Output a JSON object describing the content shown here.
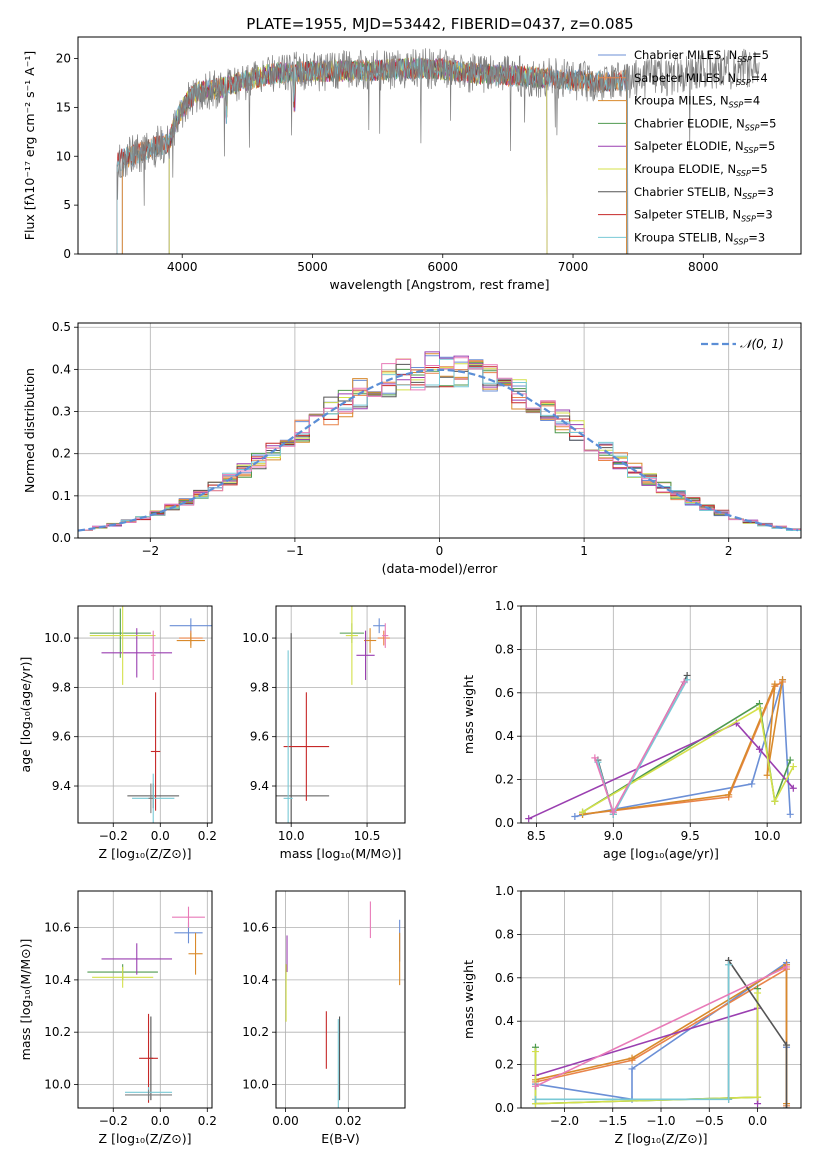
{
  "title": "PLATE=1955, MJD=53442, FIBERID=0437, z=0.085",
  "colors": {
    "Chabrier MILES": "#6b8fd6",
    "Salpeter MILES": "#e9844a",
    "Kroupa MILES": "#d98a2b",
    "Chabrier ELODIE": "#4f9a4f",
    "Salpeter ELODIE": "#9a3fb0",
    "Kroupa ELODIE": "#d4e04a",
    "Chabrier STELIB": "#555555",
    "Salpeter STELIB": "#c62828",
    "Kroupa STELIB": "#79c9d6",
    "pink": "#e87ab8",
    "gray": "#7f7f7f"
  },
  "chart_data": [
    {
      "id": "spectrum",
      "type": "line",
      "xlabel": "wavelength [Angstrom, rest frame]",
      "ylabel": "Flux [fλ10⁻¹⁷ erg cm⁻² s⁻¹ A⁻¹]",
      "xlim": [
        3200,
        8750
      ],
      "ylim": [
        0,
        22.2
      ],
      "xticks": [
        4000,
        5000,
        6000,
        7000,
        8000
      ],
      "yticks": [
        0,
        5,
        10,
        15,
        20
      ],
      "legend_position": "right",
      "legend": [
        {
          "pre": "Chabrier MILES, N",
          "sub": "SSP",
          "post": "=5"
        },
        {
          "pre": "Salpeter MILES, N",
          "sub": "SSP",
          "post": "=4"
        },
        {
          "pre": "Kroupa MILES, N",
          "sub": "SSP",
          "post": "=4"
        },
        {
          "pre": "Chabrier ELODIE, N",
          "sub": "SSP",
          "post": "=5"
        },
        {
          "pre": "Salpeter ELODIE, N",
          "sub": "SSP",
          "post": "=5"
        },
        {
          "pre": "Kroupa ELODIE, N",
          "sub": "SSP",
          "post": "=5"
        },
        {
          "pre": "Chabrier STELIB, N",
          "sub": "SSP",
          "post": "=3"
        },
        {
          "pre": "Salpeter STELIB, N",
          "sub": "SSP",
          "post": "=3"
        },
        {
          "pre": "Kroupa STELIB, N",
          "sub": "SSP",
          "post": "=3"
        }
      ],
      "continuum": [
        [
          3500,
          9.5
        ],
        [
          3700,
          10.5
        ],
        [
          3900,
          11.5
        ],
        [
          3980,
          14.5
        ],
        [
          4100,
          16.5
        ],
        [
          4300,
          17
        ],
        [
          4500,
          17.8
        ],
        [
          4700,
          18.5
        ],
        [
          5000,
          18.7
        ],
        [
          5200,
          18.7
        ],
        [
          5500,
          18.8
        ],
        [
          5800,
          19
        ],
        [
          6000,
          18.9
        ],
        [
          6300,
          18.4
        ],
        [
          6600,
          18.2
        ],
        [
          6800,
          18
        ],
        [
          7000,
          17.8
        ],
        [
          7200,
          17.6
        ],
        [
          7400,
          17.8
        ],
        [
          7700,
          18.2
        ],
        [
          8000,
          18.8
        ],
        [
          8400,
          19
        ]
      ]
    },
    {
      "id": "residuals",
      "type": "histogram",
      "xlabel": "(data-model)/error",
      "ylabel": "Normed distribution",
      "xlim": [
        -2.5,
        2.5
      ],
      "ylim": [
        0,
        0.51
      ],
      "xticks": [
        -2,
        -1,
        0,
        1,
        2
      ],
      "yticks": [
        0.0,
        0.1,
        0.2,
        0.3,
        0.4,
        0.5
      ],
      "reference": {
        "label": "𝒩(0, 1)",
        "mean": 0,
        "sigma": 1
      },
      "bin_width": 0.1,
      "grid": true
    },
    {
      "id": "age_vs_Z",
      "type": "errorbar",
      "xlabel": "Z [log₁₀(Z/Z⊙)]",
      "ylabel": "age  [log₁₀(age/yr)]",
      "xlim": [
        -0.35,
        0.22
      ],
      "ylim": [
        9.25,
        10.13
      ],
      "xticks": [
        -0.2,
        0.0,
        0.2
      ],
      "yticks": [
        9.4,
        9.6,
        9.8,
        10.0
      ],
      "points": [
        {
          "s": "Chabrier MILES",
          "x": 0.13,
          "y": 10.05,
          "xe": 0.09,
          "ye": 0.03
        },
        {
          "s": "Salpeter MILES",
          "x": 0.13,
          "y": 10.0,
          "xe": 0.05,
          "ye": 0.03
        },
        {
          "s": "Kroupa MILES",
          "x": 0.13,
          "y": 9.99,
          "xe": 0.06,
          "ye": 0.03
        },
        {
          "s": "Chabrier ELODIE",
          "x": -0.17,
          "y": 10.02,
          "xe": 0.13,
          "ye": 0.1
        },
        {
          "s": "Salpeter ELODIE",
          "x": -0.1,
          "y": 9.94,
          "xe": 0.15,
          "ye": 0.1
        },
        {
          "s": "Kroupa ELODIE",
          "x": -0.16,
          "y": 10.01,
          "xe": 0.14,
          "ye": 0.2
        },
        {
          "s": "Chabrier STELIB",
          "x": -0.03,
          "y": 9.36,
          "xe": 0.11,
          "ye": 0.05
        },
        {
          "s": "Salpeter STELIB",
          "x": -0.02,
          "y": 9.54,
          "xe": 0.02,
          "ye": 0.24
        },
        {
          "s": "Kroupa STELIB",
          "x": -0.03,
          "y": 9.35,
          "xe": 0.09,
          "ye": 0.1
        },
        {
          "s": "pink",
          "x": -0.03,
          "y": 9.93,
          "xe": 0.01,
          "ye": 0.1
        },
        {
          "s": "gray",
          "x": -0.04,
          "y": 9.35,
          "xe": 0.01,
          "ye": 0.06
        }
      ]
    },
    {
      "id": "age_vs_mass",
      "type": "errorbar",
      "xlabel": "mass [log₁₀(M/M⊙)]",
      "ylabel": "",
      "xlim": [
        9.9,
        10.75
      ],
      "ylim": [
        9.25,
        10.13
      ],
      "xticks": [
        10.0,
        10.5
      ],
      "yticks": [
        9.4,
        9.6,
        9.8,
        10.0
      ],
      "points": [
        {
          "s": "Chabrier MILES",
          "x": 10.58,
          "y": 10.05,
          "xe": 0.04,
          "ye": 0.03
        },
        {
          "s": "Salpeter MILES",
          "x": 10.61,
          "y": 10.0,
          "xe": 0.04,
          "ye": 0.03
        },
        {
          "s": "Kroupa MILES",
          "x": 10.52,
          "y": 9.99,
          "xe": 0.04,
          "ye": 0.05
        },
        {
          "s": "Chabrier ELODIE",
          "x": 10.4,
          "y": 10.02,
          "xe": 0.08,
          "ye": 0.04
        },
        {
          "s": "Salpeter ELODIE",
          "x": 10.49,
          "y": 9.93,
          "xe": 0.06,
          "ye": 0.1
        },
        {
          "s": "Kroupa ELODIE",
          "x": 10.4,
          "y": 10.01,
          "xe": 0.04,
          "ye": 0.2
        },
        {
          "s": "Chabrier STELIB",
          "x": 10.0,
          "y": 9.36,
          "xe": 0.25,
          "ye": 0.66
        },
        {
          "s": "Salpeter STELIB",
          "x": 10.1,
          "y": 9.56,
          "xe": 0.15,
          "ye": 0.22
        },
        {
          "s": "Kroupa STELIB",
          "x": 9.98,
          "y": 9.35,
          "xe": 0.03,
          "ye": 0.6
        },
        {
          "s": "pink",
          "x": 10.62,
          "y": 10.01,
          "xe": 0.02,
          "ye": 0.05
        }
      ]
    },
    {
      "id": "mw_vs_age",
      "type": "line",
      "xlabel": "age  [log₁₀(age/yr)]",
      "ylabel": "mass weight",
      "xlim": [
        8.4,
        10.22
      ],
      "ylim": [
        0,
        1
      ],
      "xticks": [
        8.5,
        9.0,
        9.5,
        10.0
      ],
      "yticks": [
        0.0,
        0.2,
        0.4,
        0.6,
        0.8,
        1.0
      ],
      "series": [
        {
          "s": "Chabrier MILES",
          "x": [
            8.75,
            9.9,
            10.1,
            10.15
          ],
          "y": [
            0.03,
            0.18,
            0.66,
            0.04
          ]
        },
        {
          "s": "Salpeter MILES",
          "x": [
            8.8,
            9.75,
            10.05,
            10.1
          ],
          "y": [
            0.04,
            0.12,
            0.63,
            0.65
          ]
        },
        {
          "s": "Kroupa MILES",
          "x": [
            8.8,
            9.75,
            10.05,
            10.0,
            10.1
          ],
          "y": [
            0.04,
            0.13,
            0.64,
            0.22,
            0.66
          ]
        },
        {
          "s": "Chabrier ELODIE",
          "x": [
            8.8,
            9.95,
            10.05,
            10.15
          ],
          "y": [
            0.05,
            0.55,
            0.1,
            0.29
          ]
        },
        {
          "s": "Salpeter ELODIE",
          "x": [
            8.45,
            9.8,
            9.95,
            10.17
          ],
          "y": [
            0.02,
            0.46,
            0.34,
            0.16
          ]
        },
        {
          "s": "Kroupa ELODIE",
          "x": [
            8.8,
            9.95,
            10.05,
            10.17
          ],
          "y": [
            0.05,
            0.53,
            0.1,
            0.26
          ]
        },
        {
          "s": "Chabrier STELIB",
          "x": [
            8.9,
            9.0,
            9.48
          ],
          "y": [
            0.29,
            0.04,
            0.68
          ]
        },
        {
          "s": "Kroupa STELIB",
          "x": [
            8.9,
            9.0,
            9.48
          ],
          "y": [
            0.28,
            0.04,
            0.66
          ]
        },
        {
          "s": "pink",
          "x": [
            8.88,
            9.0,
            9.46,
            9.0
          ],
          "y": [
            0.3,
            0.05,
            0.65,
            0.05
          ]
        }
      ]
    },
    {
      "id": "mass_vs_Z",
      "type": "errorbar",
      "xlabel": "Z [log₁₀(Z/Z⊙)]",
      "ylabel": "mass [log₁₀(M/M⊙)]",
      "xlim": [
        -0.35,
        0.22
      ],
      "ylim": [
        9.91,
        10.74
      ],
      "xticks": [
        -0.2,
        0.0,
        0.2
      ],
      "yticks": [
        10.0,
        10.2,
        10.4,
        10.6
      ],
      "points": [
        {
          "s": "Chabrier MILES",
          "x": 0.12,
          "y": 10.58,
          "xe": 0.06,
          "ye": 0.04
        },
        {
          "s": "pink",
          "x": 0.12,
          "y": 10.64,
          "xe": 0.07,
          "ye": 0.04
        },
        {
          "s": "Kroupa MILES",
          "x": 0.15,
          "y": 10.5,
          "xe": 0.03,
          "ye": 0.08
        },
        {
          "s": "Chabrier ELODIE",
          "x": -0.16,
          "y": 10.43,
          "xe": 0.15,
          "ye": 0.03
        },
        {
          "s": "Salpeter ELODIE",
          "x": -0.1,
          "y": 10.48,
          "xe": 0.15,
          "ye": 0.06
        },
        {
          "s": "Kroupa ELODIE",
          "x": -0.16,
          "y": 10.41,
          "xe": 0.13,
          "ye": 0.04
        },
        {
          "s": "Chabrier STELIB",
          "x": -0.04,
          "y": 10.1,
          "xe": 0.01,
          "ye": 0.16
        },
        {
          "s": "Salpeter STELIB",
          "x": -0.05,
          "y": 10.1,
          "xe": 0.04,
          "ye": 0.17
        },
        {
          "s": "Kroupa STELIB",
          "x": -0.05,
          "y": 9.97,
          "xe": 0.1,
          "ye": 0.02
        },
        {
          "s": "gray",
          "x": -0.05,
          "y": 9.96,
          "xe": 0.1,
          "ye": 0.02
        }
      ]
    },
    {
      "id": "mass_vs_EBV",
      "type": "errorbar",
      "xlabel": "E(B-V)",
      "ylabel": "",
      "xlim": [
        -0.003,
        0.038
      ],
      "ylim": [
        9.91,
        10.74
      ],
      "xticks": [
        0.0,
        0.02
      ],
      "yticks": [
        10.0,
        10.2,
        10.4,
        10.6
      ],
      "points": [
        {
          "s": "Chabrier MILES",
          "x": 0.0363,
          "y": 10.55,
          "xe": 0,
          "ye": 0.08
        },
        {
          "s": "Kroupa MILES",
          "x": 0.0363,
          "y": 10.48,
          "xe": 0,
          "ye": 0.1
        },
        {
          "s": "pink",
          "x": 0.027,
          "y": 10.63,
          "xe": 0,
          "ye": 0.07
        },
        {
          "s": "Salpeter ELODIE",
          "x": 0.0005,
          "y": 10.5,
          "xe": 0,
          "ye": 0.07
        },
        {
          "s": "Kroupa ELODIE",
          "x": 0.0002,
          "y": 10.35,
          "xe": 0,
          "ye": 0.11
        },
        {
          "s": "Salpeter STELIB",
          "x": 0.013,
          "y": 10.17,
          "xe": 0,
          "ye": 0.11
        },
        {
          "s": "Chabrier STELIB",
          "x": 0.0172,
          "y": 10.1,
          "xe": 0,
          "ye": 0.16
        },
        {
          "s": "Kroupa STELIB",
          "x": 0.0168,
          "y": 10.05,
          "xe": 0,
          "ye": 0.2
        }
      ]
    },
    {
      "id": "mw_vs_Z",
      "type": "line",
      "xlabel": "Z [log₁₀(Z/Z⊙)]",
      "ylabel": "mass weight",
      "xlim": [
        -2.45,
        0.45
      ],
      "ylim": [
        0,
        1
      ],
      "xticks": [
        -2.0,
        -1.5,
        -1.0,
        -0.5,
        0.0
      ],
      "yticks": [
        0.0,
        0.2,
        0.4,
        0.6,
        0.8,
        1.0
      ],
      "series": [
        {
          "s": "Chabrier MILES",
          "x": [
            -2.3,
            -1.3,
            -1.3,
            0.3,
            0.3
          ],
          "y": [
            0.11,
            0.04,
            0.18,
            0.67,
            0.28
          ]
        },
        {
          "s": "Salpeter MILES",
          "x": [
            -2.3,
            -1.3,
            0.3,
            0.3
          ],
          "y": [
            0.12,
            0.22,
            0.64,
            0.01
          ]
        },
        {
          "s": "Kroupa MILES",
          "x": [
            -2.3,
            -1.3,
            0.3,
            0.3
          ],
          "y": [
            0.13,
            0.23,
            0.66,
            0.02
          ]
        },
        {
          "s": "Chabrier ELODIE",
          "x": [
            -2.3,
            -2.3,
            0.0,
            0.0
          ],
          "y": [
            0.28,
            0.02,
            0.05,
            0.55
          ]
        },
        {
          "s": "Salpeter ELODIE",
          "x": [
            -2.3,
            0.0,
            0.0
          ],
          "y": [
            0.15,
            0.46,
            0.02
          ]
        },
        {
          "s": "Kroupa ELODIE",
          "x": [
            -2.3,
            -2.3,
            0.0,
            0.0
          ],
          "y": [
            0.26,
            0.02,
            0.05,
            0.53
          ]
        },
        {
          "s": "Chabrier STELIB",
          "x": [
            -0.3,
            -0.3,
            0.3,
            0.3
          ],
          "y": [
            0.04,
            0.68,
            0.29,
            0.0
          ]
        },
        {
          "s": "Kroupa STELIB",
          "x": [
            -2.3,
            -0.3,
            -0.3
          ],
          "y": [
            0.04,
            0.04,
            0.66
          ]
        },
        {
          "s": "pink",
          "x": [
            -2.3,
            0.3
          ],
          "y": [
            0.1,
            0.65
          ]
        }
      ]
    }
  ]
}
